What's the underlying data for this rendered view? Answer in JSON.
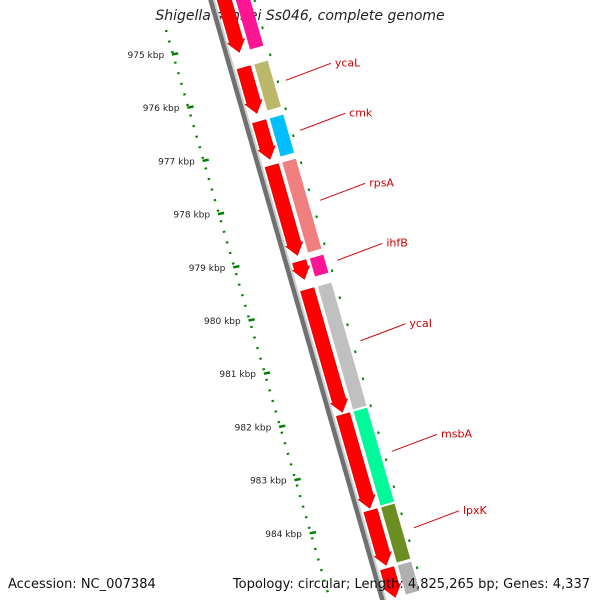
{
  "title": "Shigella sonnei Ss046, complete genome",
  "accession": "Accession: NC_007384",
  "summary": "Topology: circular; Length: 4,825,265 bp; Genes: 4,337",
  "scale_labels": [
    "975 kbp",
    "976 kbp",
    "977 kbp",
    "978 kbp",
    "979 kbp",
    "980 kbp",
    "981 kbp",
    "982 kbp",
    "983 kbp",
    "984 kbp"
  ],
  "colors": {
    "backbone": "#808080",
    "cds_arrow": "#ff0000",
    "scale_tick": "#008000",
    "label_text": "#cc0000"
  },
  "genes": [
    {
      "name": "",
      "color": "#ff1493",
      "s": 0,
      "e": 55
    },
    {
      "name": "ycaL",
      "color": "#bdb76b",
      "s": 70,
      "e": 116
    },
    {
      "name": "cmk",
      "color": "#00bfff",
      "s": 124,
      "e": 162
    },
    {
      "name": "rpsA",
      "color": "#f08080",
      "s": 168,
      "e": 258
    },
    {
      "name": "ihfB",
      "color": "#ff1493",
      "s": 264,
      "e": 282
    },
    {
      "name": "ycaI",
      "color": "#c0c0c0",
      "s": 292,
      "e": 415
    },
    {
      "name": "msbA",
      "color": "#00fa9a",
      "s": 417,
      "e": 511
    },
    {
      "name": "lpxK",
      "color": "#6b8e23",
      "s": 513,
      "e": 568
    },
    {
      "name": "",
      "color": "#b0b0b0",
      "s": 571,
      "e": 600
    }
  ]
}
